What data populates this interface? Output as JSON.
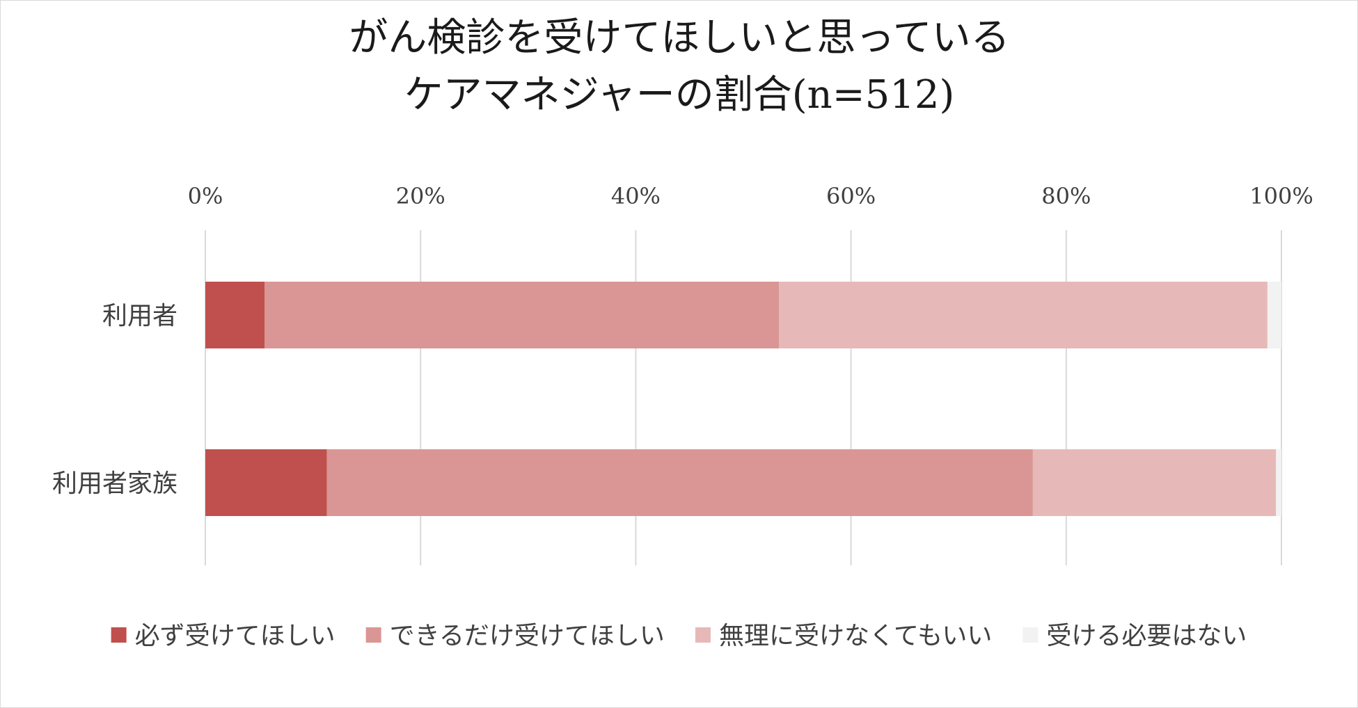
{
  "chart_data": {
    "type": "bar",
    "orientation": "horizontal",
    "stacked": "percent",
    "title": [
      "がん検診を受けてほしいと思っている",
      "ケアマネジャーの割合(n=512)"
    ],
    "categories": [
      "利用者",
      "利用者家族"
    ],
    "x_ticks": [
      "0%",
      "20%",
      "40%",
      "60%",
      "80%",
      "100%"
    ],
    "xlim": [
      0,
      100
    ],
    "x_axis_position": "top",
    "grid": true,
    "legend_position": "bottom",
    "series": [
      {
        "name": "必ず受けてほしい",
        "color": "#c0504d",
        "values": [
          5.5,
          11.3
        ]
      },
      {
        "name": "できるだけ受けてほしい",
        "color": "#d99694",
        "values": [
          47.8,
          65.6
        ]
      },
      {
        "name": "無理に受けなくてもいい",
        "color": "#e6b9b8",
        "values": [
          45.4,
          22.6
        ]
      },
      {
        "name": "受ける必要はない",
        "color": "#f2f2f2",
        "values": [
          1.3,
          0.5
        ]
      }
    ]
  }
}
